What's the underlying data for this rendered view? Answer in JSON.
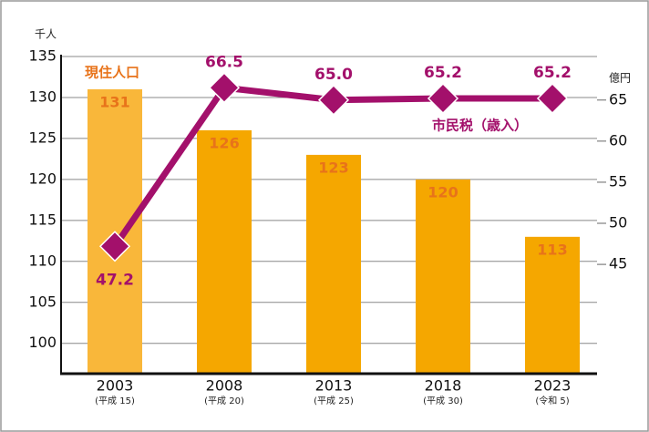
{
  "chart_data": {
    "type": "bar_line",
    "y_unit": "千人",
    "y2_unit": "億円",
    "categories": [
      "2003",
      "2008",
      "2013",
      "2018",
      "2023"
    ],
    "category_sublabels": [
      "(平成 15)",
      "(平成 20)",
      "(平成 25)",
      "(平成 30)",
      "(令和 5)"
    ],
    "series": [
      {
        "name": "現住人口",
        "type": "bar",
        "color": "#f5a700",
        "colors": [
          "#f9b73a",
          "#f5a700",
          "#f5a700",
          "#f5a700",
          "#f5a700"
        ],
        "label_color": "#e8731a",
        "values": [
          131,
          126,
          123,
          120,
          113
        ]
      },
      {
        "name": "市民税（歳入）",
        "type": "line",
        "axis": "y2",
        "color": "#a3106b",
        "values": [
          47.2,
          66.5,
          65.0,
          65.2,
          65.2
        ],
        "value_labels": [
          "47.2",
          "66.5",
          "65.0",
          "65.2",
          "65.2"
        ]
      }
    ],
    "ylim": [
      96.3,
      135
    ],
    "yticks": [
      100,
      105,
      110,
      115,
      120,
      125,
      130,
      135
    ],
    "y2lim": [
      31.7,
      70.3
    ],
    "y2ticks": [
      45,
      50,
      55,
      60,
      65
    ],
    "grid": true
  }
}
